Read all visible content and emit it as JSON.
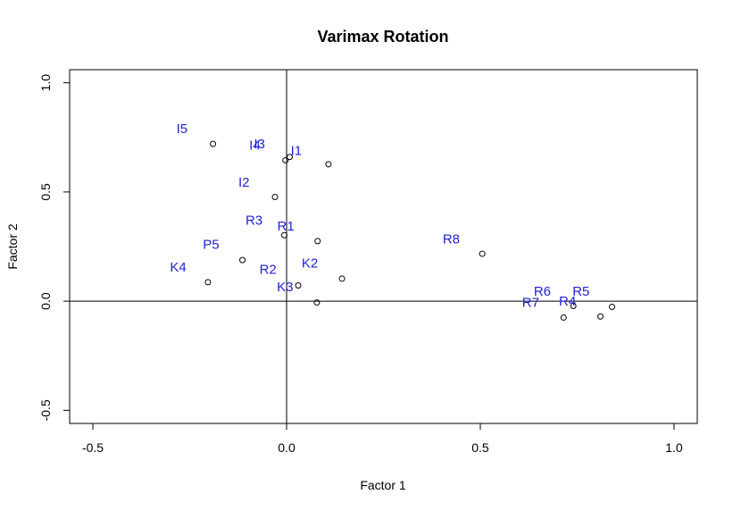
{
  "chart_data": {
    "type": "scatter",
    "title": "Varimax Rotation",
    "xlabel": "Factor 1",
    "ylabel": "Factor 2",
    "xlim": [
      -0.56,
      1.06
    ],
    "ylim": [
      -0.56,
      1.06
    ],
    "xticks": [
      -0.5,
      0.0,
      0.5,
      1.0
    ],
    "xtick_labels": [
      "-0.5",
      "0.0",
      "0.5",
      "1.0"
    ],
    "yticks": [
      -0.5,
      0.0,
      0.5,
      1.0
    ],
    "ytick_labels": [
      "-0.5",
      "0.0",
      "0.5",
      "1.0"
    ],
    "reference_lines": {
      "x": 0,
      "y": 0
    },
    "grid": false,
    "points": [
      {
        "x": -0.19,
        "y": 0.72
      },
      {
        "x": -0.003,
        "y": 0.645
      },
      {
        "x": 0.008,
        "y": 0.66
      },
      {
        "x": 0.108,
        "y": 0.627
      },
      {
        "x": -0.03,
        "y": 0.477
      },
      {
        "x": -0.006,
        "y": 0.302
      },
      {
        "x": 0.08,
        "y": 0.275
      },
      {
        "x": -0.114,
        "y": 0.188
      },
      {
        "x": 0.505,
        "y": 0.217
      },
      {
        "x": 0.143,
        "y": 0.103
      },
      {
        "x": 0.03,
        "y": 0.072
      },
      {
        "x": -0.203,
        "y": 0.087
      },
      {
        "x": 0.078,
        "y": -0.006
      },
      {
        "x": 0.74,
        "y": -0.022
      },
      {
        "x": 0.84,
        "y": -0.026
      },
      {
        "x": 0.715,
        "y": -0.075
      },
      {
        "x": 0.81,
        "y": -0.07
      }
    ],
    "labels": [
      {
        "text": "I5",
        "x": -0.27,
        "y": 0.79
      },
      {
        "text": "I4",
        "x": -0.082,
        "y": 0.715
      },
      {
        "text": "I3",
        "x": -0.07,
        "y": 0.72
      },
      {
        "text": "I1",
        "x": 0.025,
        "y": 0.69
      },
      {
        "text": "I2",
        "x": -0.11,
        "y": 0.545
      },
      {
        "text": "R3",
        "x": -0.084,
        "y": 0.37
      },
      {
        "text": "R1",
        "x": -0.002,
        "y": 0.345
      },
      {
        "text": "P5",
        "x": -0.195,
        "y": 0.26
      },
      {
        "text": "R8",
        "x": 0.425,
        "y": 0.285
      },
      {
        "text": "K2",
        "x": 0.06,
        "y": 0.175
      },
      {
        "text": "K4",
        "x": -0.28,
        "y": 0.155
      },
      {
        "text": "R2",
        "x": -0.048,
        "y": 0.145
      },
      {
        "text": "K3",
        "x": -0.004,
        "y": 0.065
      },
      {
        "text": "R6",
        "x": 0.66,
        "y": 0.045
      },
      {
        "text": "R5",
        "x": 0.76,
        "y": 0.045
      },
      {
        "text": "R7",
        "x": 0.63,
        "y": -0.005
      },
      {
        "text": "R4",
        "x": 0.725,
        "y": 0.0
      }
    ],
    "point_color": "#000000",
    "label_color": "#1f1fd9"
  }
}
